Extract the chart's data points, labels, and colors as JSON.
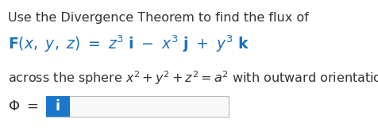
{
  "bg_color": "#ffffff",
  "line1_text": "Use the Divergence Theorem to find the flux of",
  "line1_color": "#333333",
  "line1_fontsize": 11.5,
  "blue_color": "#1a6fbc",
  "line2_fontsize": 13.5,
  "line3_color": "#333333",
  "line3_fontsize": 11.5,
  "phi_color": "#333333",
  "phi_fontsize": 13,
  "blue_box_color": "#1a77cc",
  "input_box_border": "#bbbbbb",
  "input_box_fill": "#f8f8f8",
  "fig_width": 4.76,
  "fig_height": 1.7,
  "dpi": 100
}
